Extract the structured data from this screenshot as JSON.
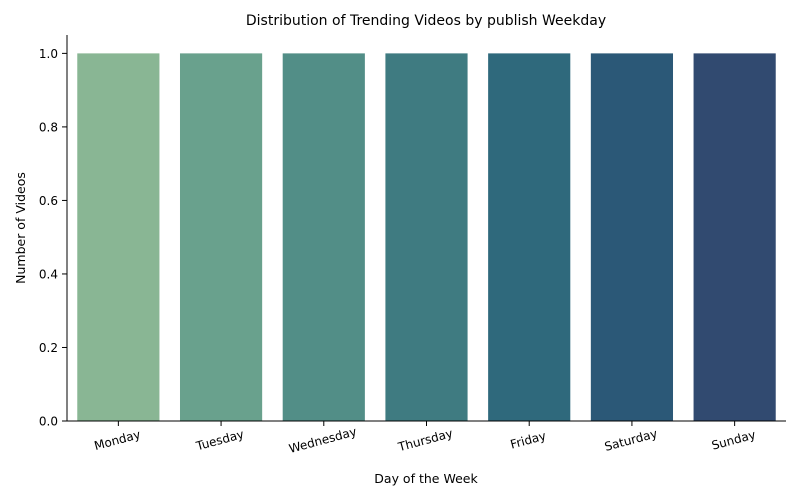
{
  "chart_data": {
    "type": "bar",
    "title": "Distribution of Trending Videos by publish Weekday",
    "xlabel": "Day of the Week",
    "ylabel": "Number of Videos",
    "categories": [
      "Monday",
      "Tuesday",
      "Wednesday",
      "Thursday",
      "Friday",
      "Saturday",
      "Sunday"
    ],
    "values": [
      1,
      1,
      1,
      1,
      1,
      1,
      1
    ],
    "ylim": [
      0,
      1.05
    ],
    "yticks": [
      "0.0",
      "0.2",
      "0.4",
      "0.6",
      "0.8",
      "1.0"
    ],
    "ytick_values": [
      0,
      0.2,
      0.4,
      0.6,
      0.8,
      1.0
    ],
    "colors": [
      "#89b694",
      "#69a18d",
      "#528e87",
      "#3f7b81",
      "#2f697c",
      "#2b5877",
      "#314a70"
    ],
    "grid": false,
    "legend": "none"
  }
}
